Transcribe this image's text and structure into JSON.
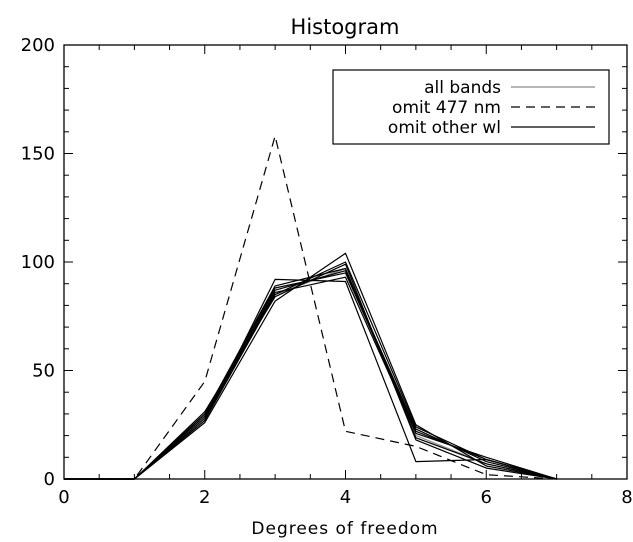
{
  "chart_data": {
    "type": "line",
    "title": "Histogram",
    "xlabel": "Degrees of freedom",
    "ylabel": "",
    "xlim": [
      0,
      8
    ],
    "ylim": [
      0,
      200
    ],
    "xticks": [
      0,
      2,
      4,
      6,
      8
    ],
    "yticks": [
      0,
      50,
      100,
      150,
      200
    ],
    "xtick_labels": [
      "0",
      "2",
      "4",
      "6",
      "8"
    ],
    "ytick_labels": [
      "0",
      "50",
      "100",
      "150",
      "200"
    ],
    "grid": false,
    "legend_position": "top-right",
    "legend": [
      {
        "label": "all bands",
        "style": "solid-gray"
      },
      {
        "label": "omit 477 nm",
        "style": "dashed"
      },
      {
        "label": "omit other wl",
        "style": "solid"
      }
    ],
    "series": [
      {
        "name": "all bands",
        "style": "solid-gray",
        "x": [
          0,
          1,
          2,
          3,
          4,
          5,
          6,
          7
        ],
        "y": [
          0,
          0,
          28,
          85,
          97,
          20,
          7,
          0
        ]
      },
      {
        "name": "omit 477 nm",
        "style": "dashed",
        "x": [
          0,
          1,
          2,
          3,
          4,
          5,
          6,
          7
        ],
        "y": [
          0,
          0,
          45,
          158,
          22,
          15,
          2,
          0
        ]
      },
      {
        "style": "solid",
        "x": [
          0,
          1,
          2,
          3,
          4,
          5,
          6,
          7
        ],
        "y": [
          0,
          0,
          27,
          92,
          91,
          8,
          9,
          0
        ]
      },
      {
        "style": "solid",
        "x": [
          0,
          1,
          2,
          3,
          4,
          5,
          6,
          7
        ],
        "y": [
          0,
          0,
          30,
          88,
          95,
          22,
          9,
          0
        ]
      },
      {
        "style": "solid",
        "x": [
          0,
          1,
          2,
          3,
          4,
          5,
          6,
          7
        ],
        "y": [
          0,
          0,
          26,
          82,
          104,
          25,
          6,
          0
        ]
      },
      {
        "style": "solid",
        "x": [
          0,
          1,
          2,
          3,
          4,
          5,
          6,
          7
        ],
        "y": [
          0,
          0,
          31,
          84,
          99,
          18,
          5,
          0
        ]
      },
      {
        "style": "solid",
        "x": [
          0,
          1,
          2,
          3,
          4,
          5,
          6,
          7
        ],
        "y": [
          0,
          0,
          29,
          87,
          96,
          23,
          8,
          0
        ]
      },
      {
        "style": "solid",
        "x": [
          0,
          1,
          2,
          3,
          4,
          5,
          6,
          7
        ],
        "y": [
          0,
          0,
          28,
          86,
          93,
          21,
          10,
          0
        ]
      },
      {
        "style": "solid",
        "x": [
          0,
          1,
          2,
          3,
          4,
          5,
          6,
          7
        ],
        "y": [
          0,
          0,
          30,
          89,
          97,
          19,
          7,
          0
        ]
      },
      {
        "style": "solid",
        "x": [
          0,
          1,
          2,
          3,
          4,
          5,
          6,
          7
        ],
        "y": [
          0,
          0,
          27,
          85,
          100,
          24,
          9,
          0
        ]
      }
    ]
  }
}
